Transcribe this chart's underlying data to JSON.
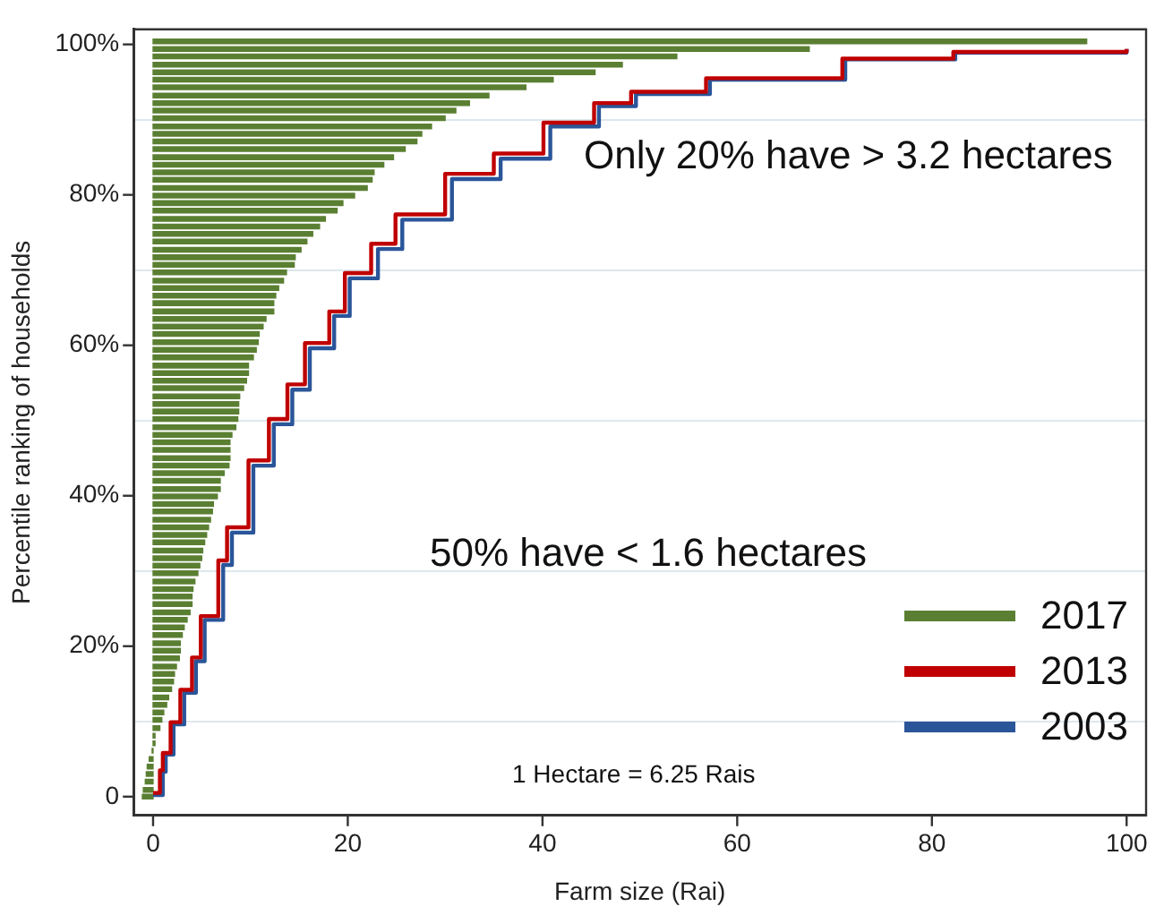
{
  "chart_data": {
    "type": "step",
    "orientation": "horizontal",
    "xlabel": "Farm size (Rai)",
    "ylabel": "Percentile ranking of households",
    "xlim": [
      -2,
      102
    ],
    "ylim": [
      -2.5,
      102
    ],
    "xticks": [
      0,
      20,
      40,
      60,
      80,
      100
    ],
    "yticks": [
      0,
      {
        "value": 20,
        "label": "20%"
      },
      {
        "value": 40,
        "label": "40%"
      },
      {
        "value": 60,
        "label": "60%"
      },
      {
        "value": 80,
        "label": "80%"
      },
      {
        "value": 100,
        "label": "100%"
      }
    ],
    "grid": "y",
    "legend": "bottom right",
    "marker": "none",
    "line_style": "solid",
    "annotations": [
      "Only 20% have > 3.2 hectares",
      "50% have < 1.6 hectares",
      "1 Hectare = 6.25 Rais"
    ],
    "series": [
      {
        "name": "2017",
        "type": "bar",
        "color": "#5a7f32",
        "x": [
          100.4,
          99.4,
          98.4,
          97.3,
          96.3,
          95.3,
          94.3,
          93.2,
          92.2,
          91.2,
          90.2,
          89.1,
          88.1,
          87.1,
          86.1,
          85.0,
          84.0,
          83.0,
          82.0,
          80.9,
          79.9,
          78.9,
          77.9,
          76.8,
          75.8,
          74.8,
          73.8,
          72.7,
          71.7,
          70.7,
          69.7,
          68.6,
          67.6,
          66.6,
          65.6,
          64.5,
          63.5,
          62.5,
          61.5,
          60.4,
          59.4,
          58.4,
          57.3,
          56.3,
          55.3,
          54.3,
          53.2,
          52.2,
          51.2,
          50.2,
          49.1,
          48.1,
          47.1,
          46.1,
          45.0,
          44.0,
          43.0,
          42.0,
          40.9,
          39.9,
          38.9,
          37.9,
          36.8,
          35.8,
          34.8,
          33.8,
          32.7,
          31.7,
          30.7,
          29.7,
          28.6,
          27.6,
          26.6,
          25.6,
          24.5,
          23.5,
          22.5,
          21.5,
          20.4,
          19.4,
          18.4,
          17.3,
          16.3,
          15.3,
          14.3,
          13.2,
          12.2,
          11.2,
          10.2,
          9.1,
          8.1,
          7.1,
          6.1,
          5.0,
          4.0,
          3.0,
          2.0,
          0.9,
          0
        ],
        "values": [
          95.9,
          67.4,
          53.8,
          48.2,
          45.4,
          41.1,
          38.3,
          34.5,
          32.5,
          31.1,
          30.0,
          28.6,
          27.6,
          27.1,
          25.9,
          24.7,
          23.7,
          22.7,
          22.5,
          22.0,
          20.7,
          19.5,
          18.9,
          17.7,
          17.1,
          16.4,
          15.8,
          15.2,
          14.6,
          14.5,
          13.7,
          13.4,
          12.9,
          12.6,
          12.4,
          12.4,
          11.6,
          11.3,
          10.9,
          10.8,
          10.6,
          10.3,
          9.8,
          9.8,
          9.6,
          9.3,
          8.9,
          8.8,
          8.8,
          8.7,
          8.5,
          8.1,
          7.9,
          7.9,
          7.9,
          7.8,
          7.3,
          6.9,
          6.9,
          6.6,
          6.2,
          6.1,
          5.9,
          5.7,
          5.5,
          5.3,
          5.1,
          5.0,
          4.8,
          4.6,
          4.3,
          4.1,
          4.0,
          4.0,
          3.8,
          3.5,
          3.2,
          3.0,
          2.8,
          2.8,
          2.7,
          2.4,
          2.2,
          2.1,
          1.9,
          1.6,
          1.4,
          1.1,
          0.9,
          0.7,
          0.2,
          0.2,
          -0.1,
          -0.4,
          -0.6,
          -0.7,
          -0.8,
          -1.0,
          -1.1
        ]
      },
      {
        "name": "2013",
        "color": "#c00000",
        "values": [
          0,
          0.7,
          1.0,
          1.8,
          2.8,
          4.0,
          4.9,
          6.7,
          7.6,
          9.8,
          11.9,
          13.8,
          15.6,
          18.1,
          19.7,
          22.4,
          24.9,
          30.0,
          35.0,
          40.1,
          45.3,
          49.1,
          56.8,
          70.8,
          82.2,
          100
        ],
        "x": [
          0.5,
          3.5,
          5.8,
          9.9,
          14.2,
          18.5,
          24.0,
          31.4,
          35.8,
          44.7,
          50.2,
          54.8,
          60.3,
          64.5,
          69.6,
          73.5,
          77.4,
          82.8,
          85.5,
          89.6,
          92.2,
          93.7,
          95.5,
          98.1,
          99.0,
          99.4
        ]
      },
      {
        "name": "2003",
        "color": "#2a5599",
        "values": [
          0,
          1,
          1.3,
          2.1,
          3.2,
          4.4,
          5.3,
          7.2,
          8.1,
          10.3,
          12.4,
          14.3,
          16.1,
          18.6,
          20.2,
          23.1,
          25.6,
          30.7,
          35.7,
          40.8,
          45.8,
          49.6,
          57.2,
          71.1,
          82.4,
          100
        ],
        "x": [
          0.2,
          3.3,
          5.6,
          9.6,
          13.8,
          18.0,
          23.5,
          30.8,
          35.1,
          44.0,
          49.5,
          54.1,
          59.6,
          63.9,
          68.9,
          72.8,
          76.7,
          82.1,
          84.8,
          89.1,
          91.8,
          93.4,
          95.3,
          98.0,
          98.9,
          99.4
        ]
      }
    ]
  }
}
